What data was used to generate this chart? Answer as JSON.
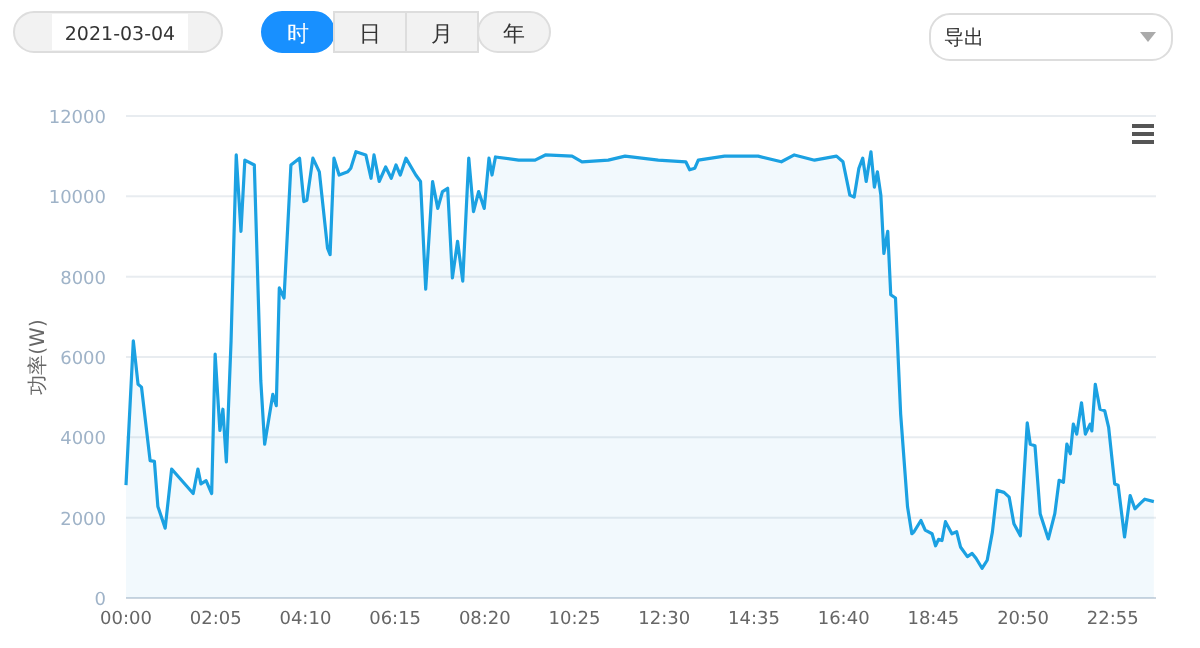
{
  "chart_data": {
    "type": "area",
    "ylabel": "功率(W)",
    "x": [
      0,
      0.17,
      0.28,
      0.36,
      0.56,
      0.66,
      0.74,
      0.91,
      1.06,
      1.56,
      1.67,
      1.74,
      1.86,
      1.99,
      2.07,
      2.18,
      2.25,
      2.33,
      2.44,
      2.56,
      2.67,
      2.76,
      2.98,
      3.13,
      3.22,
      3.41,
      3.49,
      3.56,
      3.67,
      3.83,
      4.03,
      4.13,
      4.2,
      4.34,
      4.49,
      4.68,
      4.74,
      4.83,
      4.95,
      5.15,
      5.22,
      5.34,
      5.57,
      5.69,
      5.76,
      5.88,
      6.03,
      6.16,
      6.27,
      6.37,
      6.5,
      6.73,
      6.84,
      6.96,
      7.12,
      7.24,
      7.35,
      7.47,
      7.58,
      7.7,
      7.82,
      7.96,
      8.07,
      8.19,
      8.32,
      8.43,
      8.5,
      8.58,
      9.12,
      9.5,
      9.74,
      10.36,
      10.59,
      11.2,
      11.59,
      12.36,
      13.0,
      13.09,
      13.21,
      13.29,
      13.9,
      14.68,
      15.22,
      15.52,
      15.99,
      16.5,
      16.65,
      16.81,
      16.91,
      17.02,
      17.11,
      17.19,
      17.3,
      17.38,
      17.45,
      17.53,
      17.6,
      17.69,
      17.76,
      17.87,
      17.99,
      18.15,
      18.25,
      18.3,
      18.46,
      18.56,
      18.72,
      18.8,
      18.87,
      18.95,
      19.03,
      19.18,
      19.29,
      19.38,
      19.54,
      19.65,
      19.74,
      19.88,
      20.0,
      20.12,
      20.23,
      20.39,
      20.51,
      20.62,
      20.77,
      20.93,
      21.0,
      21.11,
      21.23,
      21.42,
      21.57,
      21.67,
      21.77,
      21.85,
      21.93,
      22.0,
      22.08,
      22.19,
      22.28,
      22.39,
      22.43,
      22.51,
      22.62,
      22.73,
      22.82,
      22.96,
      23.04,
      23.19,
      23.32,
      23.43,
      23.55,
      23.66,
      23.87
    ],
    "series": [
      {
        "color": "#1ba1e2",
        "values": [
          2810,
          6400,
          5320,
          5250,
          3420,
          3400,
          2280,
          1740,
          3210,
          2600,
          3210,
          2840,
          2920,
          2600,
          6070,
          4170,
          4700,
          3390,
          6400,
          11030,
          9130,
          10900,
          10780,
          5410,
          3830,
          5070,
          4790,
          7720,
          7470,
          10780,
          10950,
          9870,
          9900,
          10950,
          10610,
          8710,
          8550,
          10950,
          10530,
          10610,
          10700,
          11110,
          11030,
          10450,
          11030,
          10370,
          10730,
          10450,
          10780,
          10530,
          10950,
          10530,
          10370,
          7690,
          10370,
          9700,
          10120,
          10200,
          7970,
          8880,
          7890,
          10950,
          9620,
          10120,
          9700,
          10950,
          10530,
          10980,
          10900,
          10900,
          11030,
          11000,
          10860,
          10900,
          11000,
          10900,
          10860,
          10660,
          10700,
          10900,
          11000,
          11000,
          10860,
          11030,
          10900,
          11000,
          10860,
          10030,
          9980,
          10700,
          10950,
          10370,
          11110,
          10230,
          10610,
          10030,
          8580,
          9130,
          7550,
          7470,
          4580,
          2270,
          1600,
          1650,
          1930,
          1690,
          1600,
          1300,
          1460,
          1430,
          1900,
          1600,
          1650,
          1270,
          1030,
          1110,
          990,
          740,
          940,
          1640,
          2680,
          2630,
          2510,
          1850,
          1550,
          4360,
          3830,
          3790,
          2100,
          1470,
          2100,
          2930,
          2880,
          3830,
          3590,
          4330,
          4080,
          4860,
          4080,
          4330,
          4160,
          5320,
          4700,
          4660,
          4250,
          2840,
          2810,
          1520,
          2550,
          2220,
          2350,
          2460,
          2400
        ]
      }
    ],
    "xlim": [
      0,
      23.92
    ],
    "xticks": [
      {
        "value": 0,
        "label": "00:00"
      },
      {
        "value": 2.0833,
        "label": "02:05"
      },
      {
        "value": 4.1667,
        "label": "04:10"
      },
      {
        "value": 6.25,
        "label": "06:15"
      },
      {
        "value": 8.3333,
        "label": "08:20"
      },
      {
        "value": 10.4167,
        "label": "10:25"
      },
      {
        "value": 12.5,
        "label": "12:30"
      },
      {
        "value": 14.5833,
        "label": "14:35"
      },
      {
        "value": 16.6667,
        "label": "16:40"
      },
      {
        "value": 18.75,
        "label": "18:45"
      },
      {
        "value": 20.8333,
        "label": "20:50"
      },
      {
        "value": 22.9167,
        "label": "22:55"
      }
    ],
    "ylim": [
      0,
      12000
    ],
    "yticks": [
      0,
      2000,
      4000,
      6000,
      8000,
      10000,
      12000
    ],
    "grid": "y",
    "annotations": [
      "2021-03-04",
      "时",
      "日",
      "月",
      "年",
      "导出"
    ]
  }
}
